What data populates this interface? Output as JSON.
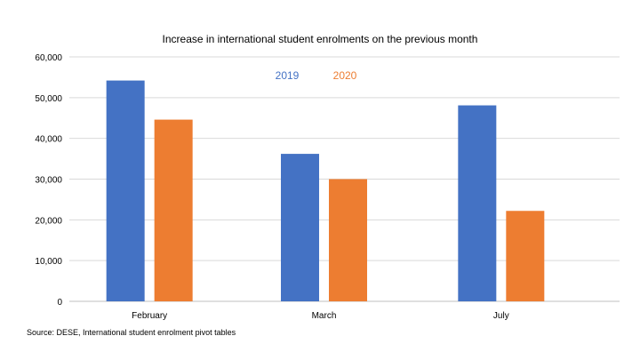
{
  "chart_data": {
    "type": "bar",
    "title": "Increase in international student enrolments on the previous month",
    "categories": [
      "February",
      "March",
      "July"
    ],
    "series": [
      {
        "name": "2019",
        "color": "#4472C4",
        "values": [
          54200,
          36200,
          48100
        ]
      },
      {
        "name": "2020",
        "color": "#ED7D31",
        "values": [
          44600,
          30000,
          22200
        ]
      }
    ],
    "ylim": [
      0,
      60000
    ],
    "yticks": [
      0,
      10000,
      20000,
      30000,
      40000,
      50000,
      60000
    ],
    "ytick_labels": [
      "0",
      "10,000",
      "20,000",
      "30,000",
      "40,000",
      "50,000",
      "60,000"
    ],
    "xlabel": "",
    "ylabel": "",
    "grid": true,
    "legend_position": "top-center",
    "source": "Source: DESE, International student enrolment pivot tables"
  }
}
